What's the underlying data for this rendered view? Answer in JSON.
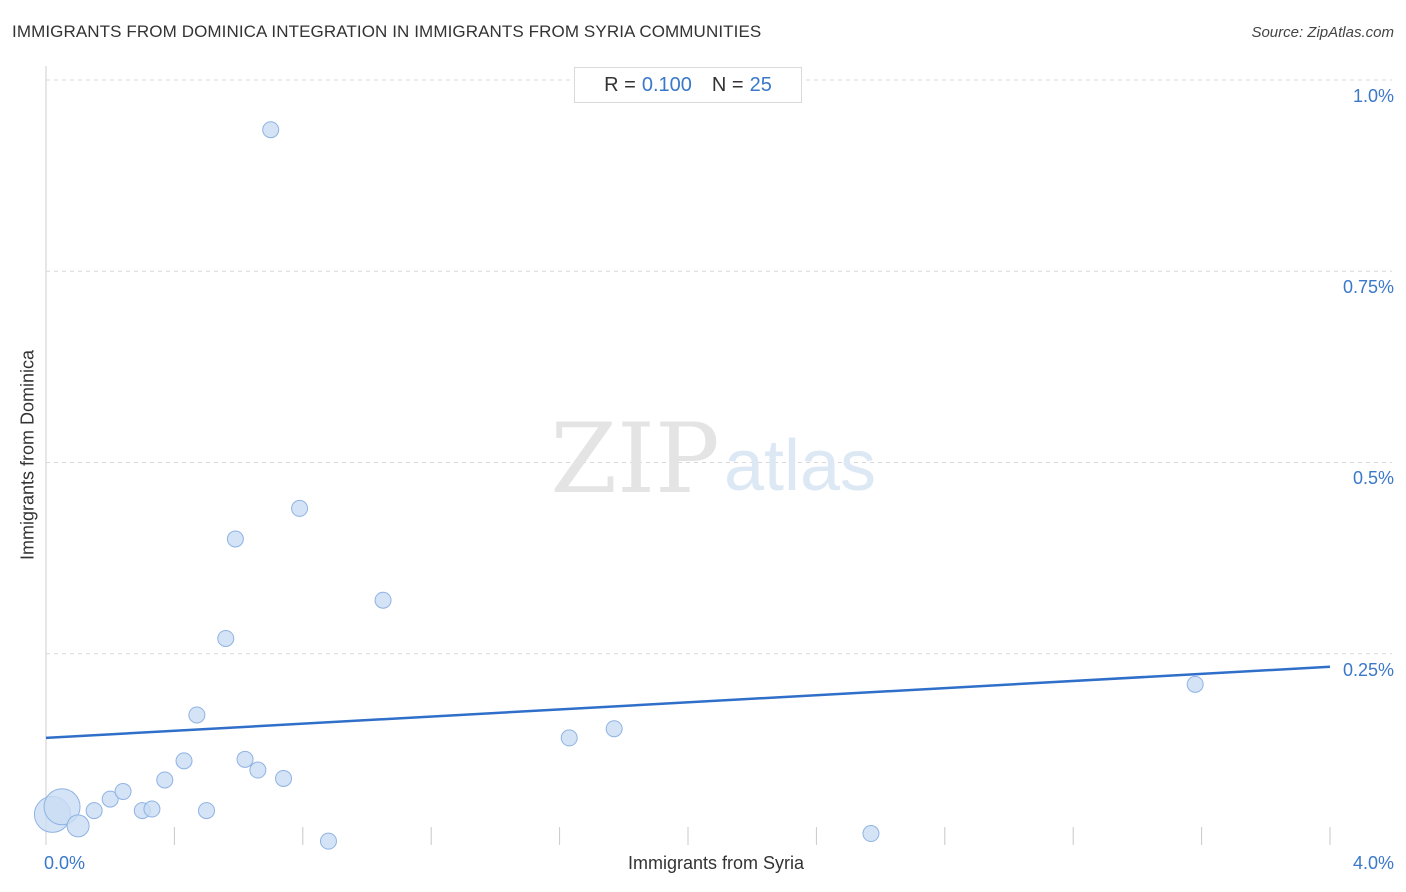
{
  "header": {
    "title": "IMMIGRANTS FROM DOMINICA INTEGRATION IN IMMIGRANTS FROM SYRIA COMMUNITIES",
    "source": "Source: ZipAtlas.com"
  },
  "stats": {
    "r_label": "R =",
    "r_value": "0.100",
    "n_label": "N =",
    "n_value": "25"
  },
  "watermark": {
    "zip": "ZIP",
    "atlas": "atlas"
  },
  "colors": {
    "accent": "#3a78c9",
    "line": "#2f6fc9",
    "point_fill": "#c9dcf4",
    "point_stroke": "#8fb3e3",
    "grid": "#d8d8d8"
  },
  "chart_data": {
    "type": "scatter",
    "title": "IMMIGRANTS FROM DOMINICA INTEGRATION IN IMMIGRANTS FROM SYRIA COMMUNITIES",
    "xlabel": "Immigrants from Syria",
    "ylabel": "Immigrants from Dominica",
    "xlim": [
      0,
      4.0
    ],
    "ylim": [
      0,
      1.0
    ],
    "x_tick_labels": [
      "0.0%",
      "4.0%"
    ],
    "y_ticks": [
      {
        "value": 1.0,
        "label": "1.0%"
      },
      {
        "value": 0.75,
        "label": "0.75%"
      },
      {
        "value": 0.5,
        "label": "0.5%"
      },
      {
        "value": 0.25,
        "label": "0.25%"
      }
    ],
    "grid": true,
    "r": 0.1,
    "n": 25,
    "trend_line": {
      "x": [
        0.0,
        4.0
      ],
      "y": [
        0.14,
        0.233
      ]
    },
    "points": [
      {
        "x": 0.02,
        "y": 0.04,
        "size": "large"
      },
      {
        "x": 0.05,
        "y": 0.05,
        "size": "large"
      },
      {
        "x": 0.1,
        "y": 0.025,
        "size": "medium"
      },
      {
        "x": 0.15,
        "y": 0.045,
        "size": "small"
      },
      {
        "x": 0.2,
        "y": 0.06,
        "size": "small"
      },
      {
        "x": 0.24,
        "y": 0.07,
        "size": "small"
      },
      {
        "x": 0.3,
        "y": 0.045,
        "size": "small"
      },
      {
        "x": 0.33,
        "y": 0.047,
        "size": "small"
      },
      {
        "x": 0.37,
        "y": 0.085,
        "size": "small"
      },
      {
        "x": 0.43,
        "y": 0.11,
        "size": "small"
      },
      {
        "x": 0.47,
        "y": 0.17,
        "size": "small"
      },
      {
        "x": 0.5,
        "y": 0.045,
        "size": "small"
      },
      {
        "x": 0.56,
        "y": 0.27,
        "size": "small"
      },
      {
        "x": 0.59,
        "y": 0.4,
        "size": "small"
      },
      {
        "x": 0.62,
        "y": 0.112,
        "size": "small"
      },
      {
        "x": 0.66,
        "y": 0.098,
        "size": "small"
      },
      {
        "x": 0.7,
        "y": 0.935,
        "size": "small"
      },
      {
        "x": 0.74,
        "y": 0.087,
        "size": "small"
      },
      {
        "x": 0.79,
        "y": 0.44,
        "size": "small"
      },
      {
        "x": 0.88,
        "y": 0.005,
        "size": "small"
      },
      {
        "x": 1.05,
        "y": 0.32,
        "size": "small"
      },
      {
        "x": 1.63,
        "y": 0.14,
        "size": "small"
      },
      {
        "x": 1.77,
        "y": 0.152,
        "size": "small"
      },
      {
        "x": 2.57,
        "y": 0.015,
        "size": "small"
      },
      {
        "x": 3.58,
        "y": 0.21,
        "size": "small"
      }
    ]
  }
}
